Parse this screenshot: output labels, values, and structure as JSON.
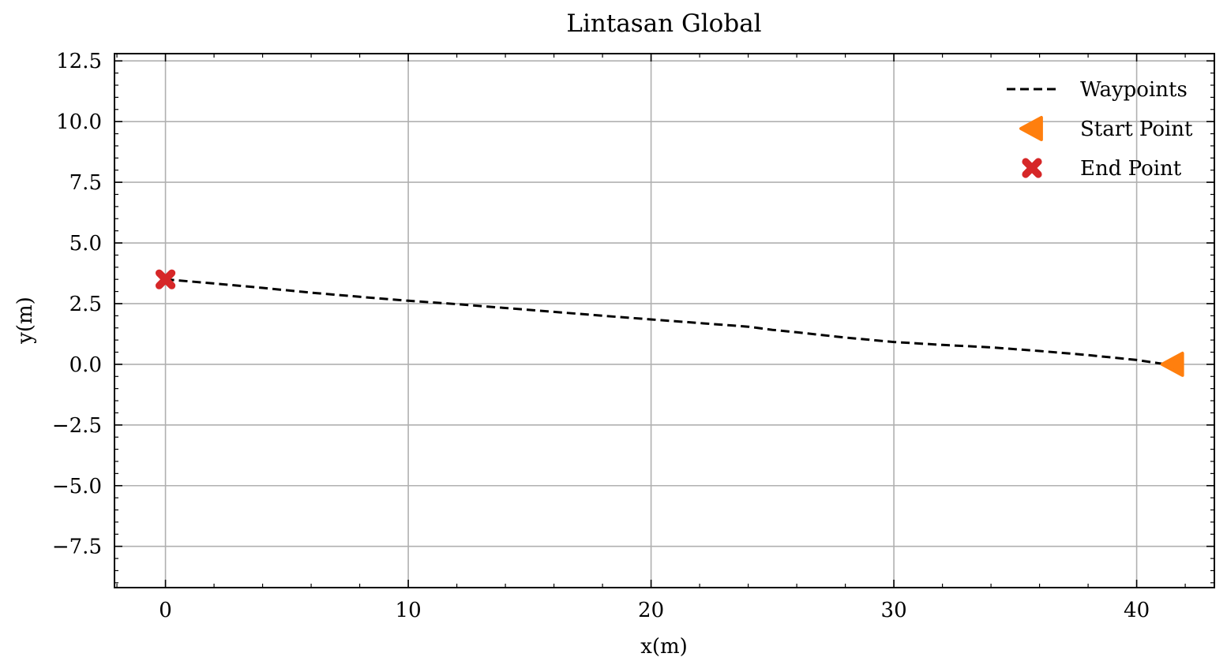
{
  "chart_data": {
    "type": "line",
    "title": "Lintasan Global",
    "xlabel": "x(m)",
    "ylabel": "y(m)",
    "xlim": [
      -2.1,
      43.2
    ],
    "ylim": [
      -9.2,
      12.8
    ],
    "xticks": [
      0,
      10,
      20,
      30,
      40
    ],
    "xtick_labels": [
      "0",
      "10",
      "20",
      "30",
      "40"
    ],
    "yticks": [
      -7.5,
      -5.0,
      -2.5,
      0.0,
      2.5,
      5.0,
      7.5,
      10.0,
      12.5
    ],
    "ytick_labels": [
      "−7.5",
      "−5.0",
      "−2.5",
      "0.0",
      "2.5",
      "5.0",
      "7.5",
      "10.0",
      "12.5"
    ],
    "grid": true,
    "legend_position": "top-right",
    "series": [
      {
        "name": "Waypoints",
        "style": "dashed",
        "color": "#000000",
        "x": [
          0,
          2,
          4,
          6,
          8,
          10,
          12,
          14,
          16,
          18,
          20,
          22,
          24,
          25,
          26,
          28,
          30,
          32,
          34,
          36,
          38,
          40,
          41.2
        ],
        "y": [
          3.5,
          3.33,
          3.15,
          2.95,
          2.78,
          2.62,
          2.48,
          2.32,
          2.16,
          2.0,
          1.85,
          1.7,
          1.55,
          1.42,
          1.32,
          1.1,
          0.92,
          0.8,
          0.7,
          0.55,
          0.38,
          0.18,
          0.0
        ]
      },
      {
        "name": "Start Point",
        "marker": "triangle-left",
        "color": "#ff7f0e",
        "x": [
          41.5
        ],
        "y": [
          0.0
        ]
      },
      {
        "name": "End Point",
        "marker": "x-filled",
        "color": "#d62728",
        "x": [
          0
        ],
        "y": [
          3.5
        ]
      }
    ]
  }
}
